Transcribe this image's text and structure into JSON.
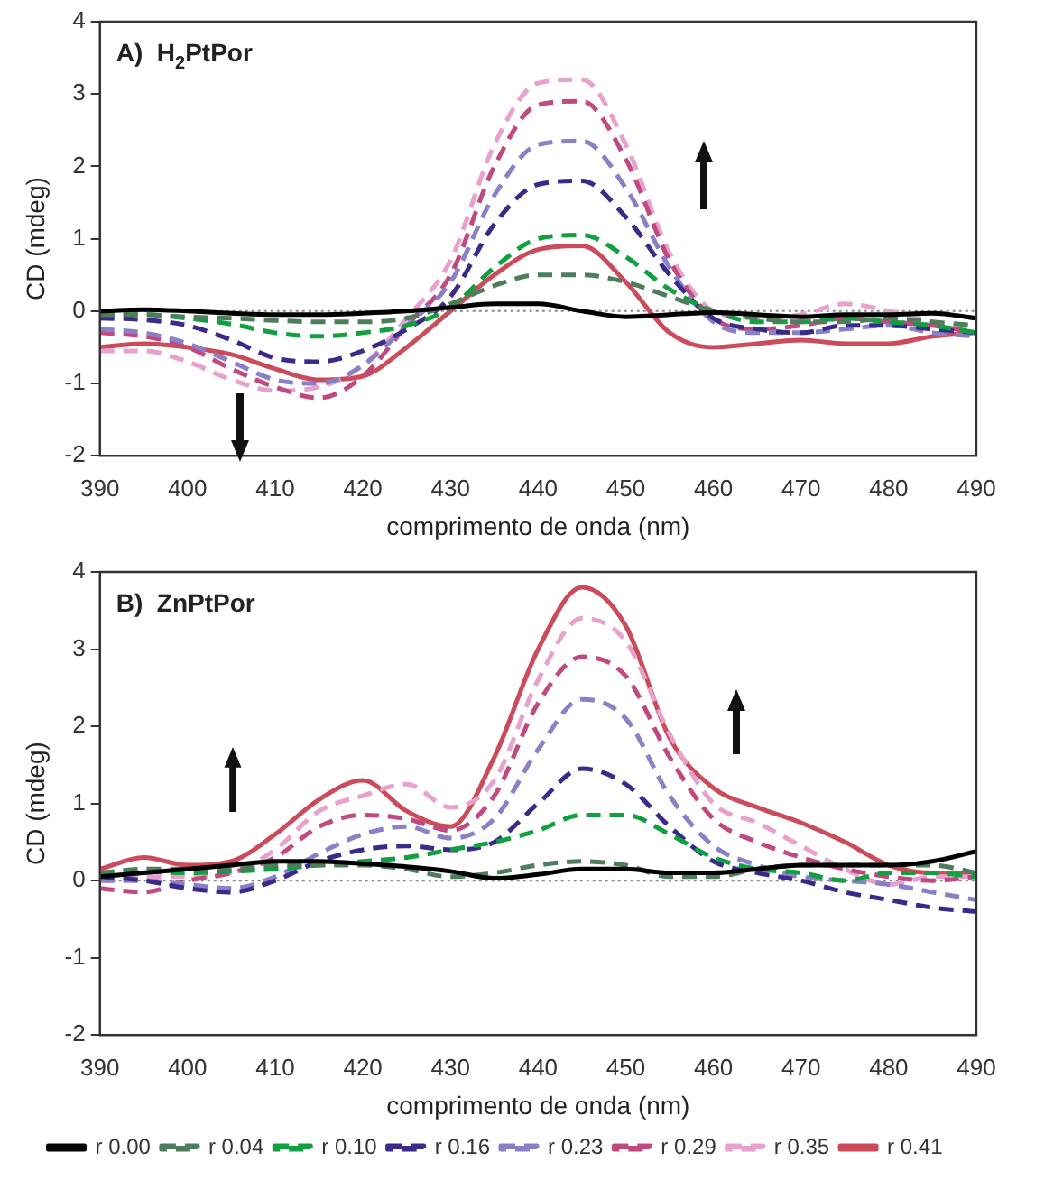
{
  "chart_data": [
    {
      "type": "line",
      "title": "A)  H$_{2}$PtPor",
      "xlabel": "comprimento de onda (nm)",
      "ylabel": "CD (mdeg)",
      "x": [
        390,
        395,
        400,
        405,
        410,
        415,
        420,
        425,
        430,
        435,
        440,
        445,
        450,
        455,
        460,
        465,
        470,
        475,
        480,
        485,
        490
      ],
      "xlim": [
        390,
        490
      ],
      "xticks": [
        390,
        400,
        410,
        420,
        430,
        440,
        450,
        460,
        470,
        480,
        490
      ],
      "ylim": [
        -2,
        4
      ],
      "yticks": [
        -2,
        -1,
        0,
        1,
        2,
        3,
        4
      ],
      "grid": false,
      "legend": false,
      "marker": "none",
      "ref_lines": [
        {
          "axis": "y",
          "value": 0,
          "color": "#888888",
          "line_style": "dotted"
        }
      ],
      "series": [
        {
          "color": "#000000",
          "line_style": "solid",
          "values": [
            0,
            0.02,
            0,
            -0.03,
            -0.05,
            -0.05,
            -0.03,
            0,
            0.05,
            0.1,
            0.1,
            0,
            -0.08,
            -0.05,
            -0.02,
            -0.05,
            -0.08,
            -0.05,
            -0.05,
            -0.03,
            -0.1
          ]
        },
        {
          "color": "#4e7d5c",
          "line_style": "dashed",
          "values": [
            -0.05,
            -0.05,
            -0.08,
            -0.1,
            -0.13,
            -0.15,
            -0.15,
            -0.1,
            0.1,
            0.35,
            0.5,
            0.5,
            0.4,
            0.2,
            0,
            -0.1,
            -0.15,
            -0.15,
            -0.1,
            -0.15,
            -0.2
          ]
        },
        {
          "color": "#10a040",
          "line_style": "dashed",
          "values": [
            -0.05,
            -0.05,
            -0.1,
            -0.18,
            -0.3,
            -0.35,
            -0.3,
            -0.2,
            0.05,
            0.6,
            1,
            1.05,
            0.75,
            0.3,
            0,
            -0.15,
            -0.15,
            -0.1,
            -0.15,
            -0.2,
            -0.3
          ]
        },
        {
          "color": "#3a2a8a",
          "line_style": "dashed",
          "values": [
            -0.1,
            -0.12,
            -0.2,
            -0.4,
            -0.65,
            -0.7,
            -0.55,
            -0.25,
            0.2,
            1.2,
            1.75,
            1.8,
            1.3,
            0.5,
            -0.1,
            -0.25,
            -0.3,
            -0.2,
            -0.2,
            -0.25,
            -0.3
          ]
        },
        {
          "color": "#8a80c8",
          "line_style": "dashed",
          "values": [
            -0.25,
            -0.3,
            -0.45,
            -0.7,
            -0.95,
            -1,
            -0.75,
            -0.2,
            0.4,
            1.6,
            2.3,
            2.35,
            1.7,
            0.6,
            -0.15,
            -0.3,
            -0.3,
            -0.25,
            -0.2,
            -0.3,
            -0.35
          ]
        },
        {
          "color": "#c04a80",
          "line_style": "dashed",
          "values": [
            -0.3,
            -0.35,
            -0.5,
            -0.8,
            -1.05,
            -1.2,
            -0.9,
            -0.2,
            0.5,
            2,
            2.85,
            2.9,
            2.1,
            0.7,
            -0.1,
            -0.25,
            -0.2,
            -0.1,
            -0.15,
            -0.2,
            -0.3
          ]
        },
        {
          "color": "#e8a0cc",
          "line_style": "dashed",
          "values": [
            -0.55,
            -0.55,
            -0.7,
            -0.95,
            -1.1,
            -1.05,
            -0.75,
            -0.1,
            0.7,
            2.3,
            3.15,
            3.2,
            2.3,
            0.8,
            0,
            -0.1,
            -0.05,
            0.1,
            0,
            -0.15,
            -0.25
          ]
        },
        {
          "color": "#cc4b5a",
          "line_style": "solid",
          "values": [
            -0.5,
            -0.45,
            -0.5,
            -0.6,
            -0.8,
            -0.95,
            -0.9,
            -0.5,
            0,
            0.5,
            0.85,
            0.9,
            0.4,
            -0.3,
            -0.5,
            -0.45,
            -0.4,
            -0.45,
            -0.45,
            -0.35,
            -0.3
          ]
        }
      ]
    },
    {
      "type": "line",
      "title": "B)  ZnPtPor",
      "xlabel": "comprimento de onda (nm)",
      "ylabel": "CD (mdeg)",
      "x": [
        390,
        395,
        400,
        405,
        410,
        415,
        420,
        425,
        430,
        435,
        440,
        445,
        450,
        455,
        460,
        465,
        470,
        475,
        480,
        485,
        490
      ],
      "xlim": [
        390,
        490
      ],
      "xticks": [
        390,
        400,
        410,
        420,
        430,
        440,
        450,
        460,
        470,
        480,
        490
      ],
      "ylim": [
        -2,
        4
      ],
      "yticks": [
        -2,
        -1,
        0,
        1,
        2,
        3,
        4
      ],
      "grid": false,
      "legend": "bottom",
      "marker": "none",
      "ref_lines": [
        {
          "axis": "y",
          "value": 0,
          "color": "#888888",
          "line_style": "dotted"
        }
      ],
      "series": [
        {
          "name": "r 0.00",
          "color": "#000000",
          "line_style": "solid",
          "values": [
            0.05,
            0.1,
            0.15,
            0.2,
            0.25,
            0.25,
            0.22,
            0.18,
            0.12,
            0.03,
            0.08,
            0.15,
            0.15,
            0.1,
            0.1,
            0.15,
            0.2,
            0.2,
            0.2,
            0.25,
            0.38
          ]
        },
        {
          "name": "r 0.04",
          "color": "#4e7d5c",
          "line_style": "dashed",
          "values": [
            0.1,
            0.15,
            0.15,
            0.15,
            0.2,
            0.2,
            0.2,
            0.15,
            0.05,
            0.1,
            0.2,
            0.25,
            0.2,
            0.05,
            0.05,
            0.15,
            0.2,
            0.2,
            0.2,
            0.2,
            0.1
          ]
        },
        {
          "name": "r 0.10",
          "color": "#10a040",
          "line_style": "dashed",
          "values": [
            0.1,
            0.12,
            0.1,
            0.12,
            0.15,
            0.2,
            0.25,
            0.3,
            0.4,
            0.5,
            0.65,
            0.85,
            0.85,
            0.6,
            0.3,
            0.15,
            0.1,
            0,
            0.1,
            0.1,
            0.05
          ]
        },
        {
          "name": "r 0.16",
          "color": "#3a2a8a",
          "line_style": "dashed",
          "values": [
            0.05,
            0,
            -0.1,
            -0.15,
            0,
            0.25,
            0.4,
            0.45,
            0.4,
            0.5,
            1,
            1.45,
            1.25,
            0.7,
            0.25,
            0.1,
            0,
            -0.15,
            -0.25,
            -0.35,
            -0.4
          ]
        },
        {
          "name": "r 0.23",
          "color": "#8a80c8",
          "line_style": "dashed",
          "values": [
            0,
            0,
            -0.05,
            -0.1,
            0.05,
            0.35,
            0.6,
            0.7,
            0.55,
            0.8,
            1.7,
            2.35,
            2.1,
            1.1,
            0.45,
            0.2,
            0.05,
            0,
            -0.05,
            -0.15,
            -0.25
          ]
        },
        {
          "name": "r 0.29",
          "color": "#c04a80",
          "line_style": "dashed",
          "values": [
            -0.1,
            -0.15,
            0,
            0.1,
            0.3,
            0.7,
            0.85,
            0.8,
            0.65,
            1.1,
            2.3,
            2.9,
            2.65,
            1.6,
            0.8,
            0.5,
            0.3,
            0.15,
            0.05,
            0,
            0.05
          ]
        },
        {
          "name": "r 0.35",
          "color": "#e8a0cc",
          "line_style": "dashed",
          "values": [
            0.05,
            0.05,
            0.05,
            0.1,
            0.4,
            0.9,
            1.1,
            1.25,
            0.95,
            1.3,
            2.6,
            3.4,
            3.1,
            1.9,
            1,
            0.75,
            0.45,
            0.15,
            -0.05,
            0.05,
            0.05
          ]
        },
        {
          "name": "r 0.41",
          "color": "#cc4b5a",
          "line_style": "solid",
          "values": [
            0.15,
            0.3,
            0.2,
            0.25,
            0.6,
            1.05,
            1.3,
            0.9,
            0.7,
            1.6,
            3,
            3.8,
            3.3,
            1.85,
            1.2,
            0.95,
            0.75,
            0.5,
            0.2,
            0.1,
            0.1
          ]
        }
      ]
    }
  ]
}
